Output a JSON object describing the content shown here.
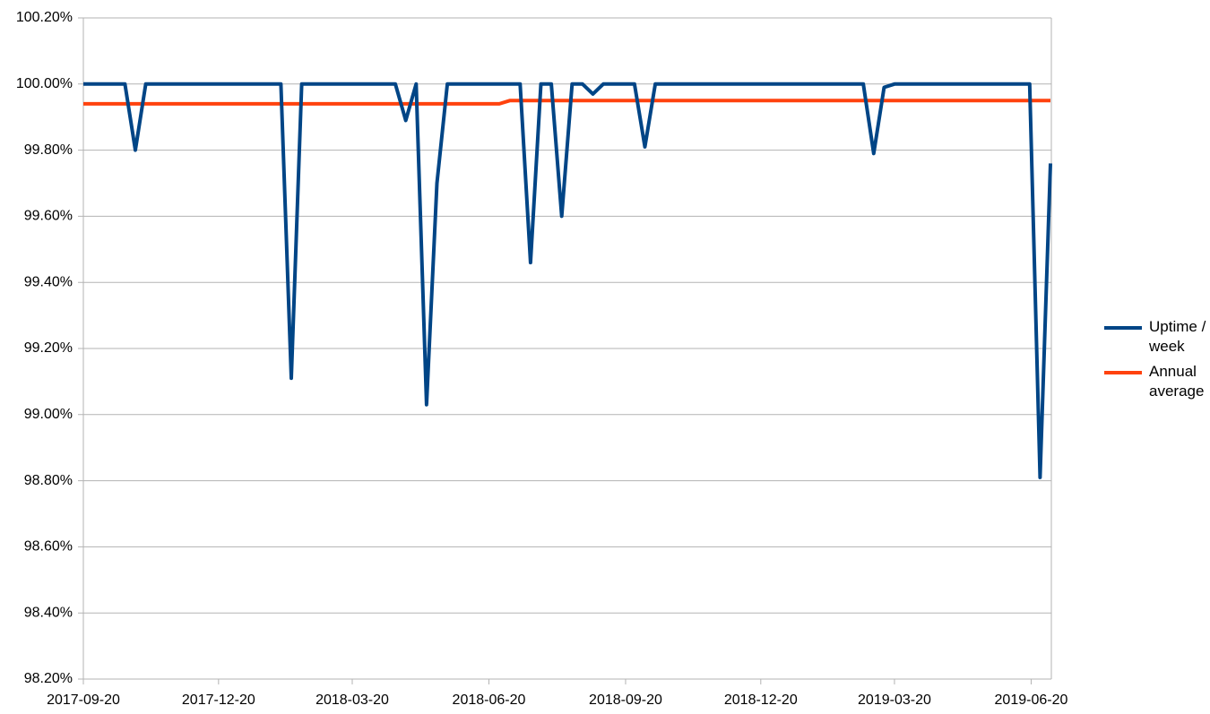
{
  "chart_data": {
    "type": "line",
    "x": [
      "2017-09-20",
      "2017-09-27",
      "2017-10-04",
      "2017-10-11",
      "2017-10-18",
      "2017-10-25",
      "2017-11-01",
      "2017-11-08",
      "2017-11-15",
      "2017-11-22",
      "2017-11-29",
      "2017-12-06",
      "2017-12-13",
      "2017-12-20",
      "2017-12-27",
      "2018-01-03",
      "2018-01-10",
      "2018-01-17",
      "2018-01-24",
      "2018-01-31",
      "2018-02-07",
      "2018-02-14",
      "2018-02-21",
      "2018-02-28",
      "2018-03-07",
      "2018-03-14",
      "2018-03-21",
      "2018-03-28",
      "2018-04-04",
      "2018-04-11",
      "2018-04-18",
      "2018-04-25",
      "2018-05-02",
      "2018-05-09",
      "2018-05-16",
      "2018-05-23",
      "2018-05-30",
      "2018-06-06",
      "2018-06-13",
      "2018-06-20",
      "2018-06-27",
      "2018-07-04",
      "2018-07-11",
      "2018-07-18",
      "2018-07-25",
      "2018-08-01",
      "2018-08-08",
      "2018-08-15",
      "2018-08-22",
      "2018-08-29",
      "2018-09-05",
      "2018-09-12",
      "2018-09-19",
      "2018-09-26",
      "2018-10-03",
      "2018-10-10",
      "2018-10-17",
      "2018-10-24",
      "2018-10-31",
      "2018-11-07",
      "2018-11-14",
      "2018-11-21",
      "2018-11-28",
      "2018-12-05",
      "2018-12-12",
      "2018-12-19",
      "2018-12-26",
      "2019-01-02",
      "2019-01-09",
      "2019-01-16",
      "2019-01-23",
      "2019-01-30",
      "2019-02-06",
      "2019-02-13",
      "2019-02-20",
      "2019-02-27",
      "2019-03-06",
      "2019-03-13",
      "2019-03-20",
      "2019-03-27",
      "2019-04-03",
      "2019-04-10",
      "2019-04-17",
      "2019-04-24",
      "2019-05-01",
      "2019-05-08",
      "2019-05-15",
      "2019-05-22",
      "2019-05-29",
      "2019-06-05",
      "2019-06-12",
      "2019-06-19",
      "2019-06-26",
      "2019-07-03"
    ],
    "series": [
      {
        "name": "Uptime / week",
        "color": "#004586",
        "values": [
          100,
          100,
          100,
          100,
          100,
          99.8,
          100,
          100,
          100,
          100,
          100,
          100,
          100,
          100,
          100,
          100,
          100,
          100,
          100,
          100,
          99.11,
          100,
          100,
          100,
          100,
          100,
          100,
          100,
          100,
          100,
          100,
          99.89,
          100,
          99.03,
          99.7,
          100,
          100,
          100,
          100,
          100,
          100,
          100,
          100,
          99.46,
          100,
          100,
          99.6,
          100,
          100,
          99.97,
          100,
          100,
          100,
          100,
          99.81,
          100,
          100,
          100,
          100,
          100,
          100,
          100,
          100,
          100,
          100,
          100,
          100,
          100,
          100,
          100,
          100,
          100,
          100,
          100,
          100,
          100,
          99.79,
          99.99,
          100,
          100,
          100,
          100,
          100,
          100,
          100,
          100,
          100,
          100,
          100,
          100,
          100,
          100,
          98.81,
          99.76
        ]
      },
      {
        "name": "Annual average",
        "color": "#ff420e",
        "values": [
          99.94,
          99.94,
          99.94,
          99.94,
          99.94,
          99.94,
          99.94,
          99.94,
          99.94,
          99.94,
          99.94,
          99.94,
          99.94,
          99.94,
          99.94,
          99.94,
          99.94,
          99.94,
          99.94,
          99.94,
          99.94,
          99.94,
          99.94,
          99.94,
          99.94,
          99.94,
          99.94,
          99.94,
          99.94,
          99.94,
          99.94,
          99.94,
          99.94,
          99.94,
          99.94,
          99.94,
          99.94,
          99.94,
          99.94,
          99.94,
          99.94,
          99.95,
          99.95,
          99.95,
          99.95,
          99.95,
          99.95,
          99.95,
          99.95,
          99.95,
          99.95,
          99.95,
          99.95,
          99.95,
          99.95,
          99.95,
          99.95,
          99.95,
          99.95,
          99.95,
          99.95,
          99.95,
          99.95,
          99.95,
          99.95,
          99.95,
          99.95,
          99.95,
          99.95,
          99.95,
          99.95,
          99.95,
          99.95,
          99.95,
          99.95,
          99.95,
          99.95,
          99.95,
          99.95,
          99.95,
          99.95,
          99.95,
          99.95,
          99.95,
          99.95,
          99.95,
          99.95,
          99.95,
          99.95,
          99.95,
          99.95,
          99.95,
          99.95,
          99.95
        ]
      }
    ],
    "xlim": [
      "2017-09-20",
      "2019-07-03"
    ],
    "xticks": [
      "2017-09-20",
      "2017-12-20",
      "2018-03-20",
      "2018-06-20",
      "2018-09-20",
      "2018-12-20",
      "2019-03-20",
      "2019-06-20"
    ],
    "ylim": [
      98.2,
      100.2
    ],
    "yticks": [
      {
        "value": 98.2,
        "label": "98.20%"
      },
      {
        "value": 98.4,
        "label": "98.40%"
      },
      {
        "value": 98.6,
        "label": "98.60%"
      },
      {
        "value": 98.8,
        "label": "98.80%"
      },
      {
        "value": 99,
        "label": "99.00%"
      },
      {
        "value": 99.2,
        "label": "99.20%"
      },
      {
        "value": 99.4,
        "label": "99.40%"
      },
      {
        "value": 99.6,
        "label": "99.60%"
      },
      {
        "value": 99.8,
        "label": "99.80%"
      },
      {
        "value": 100,
        "label": "100.00%"
      },
      {
        "value": 100.2,
        "label": "100.20%"
      }
    ],
    "grid": true,
    "legend": "right"
  }
}
